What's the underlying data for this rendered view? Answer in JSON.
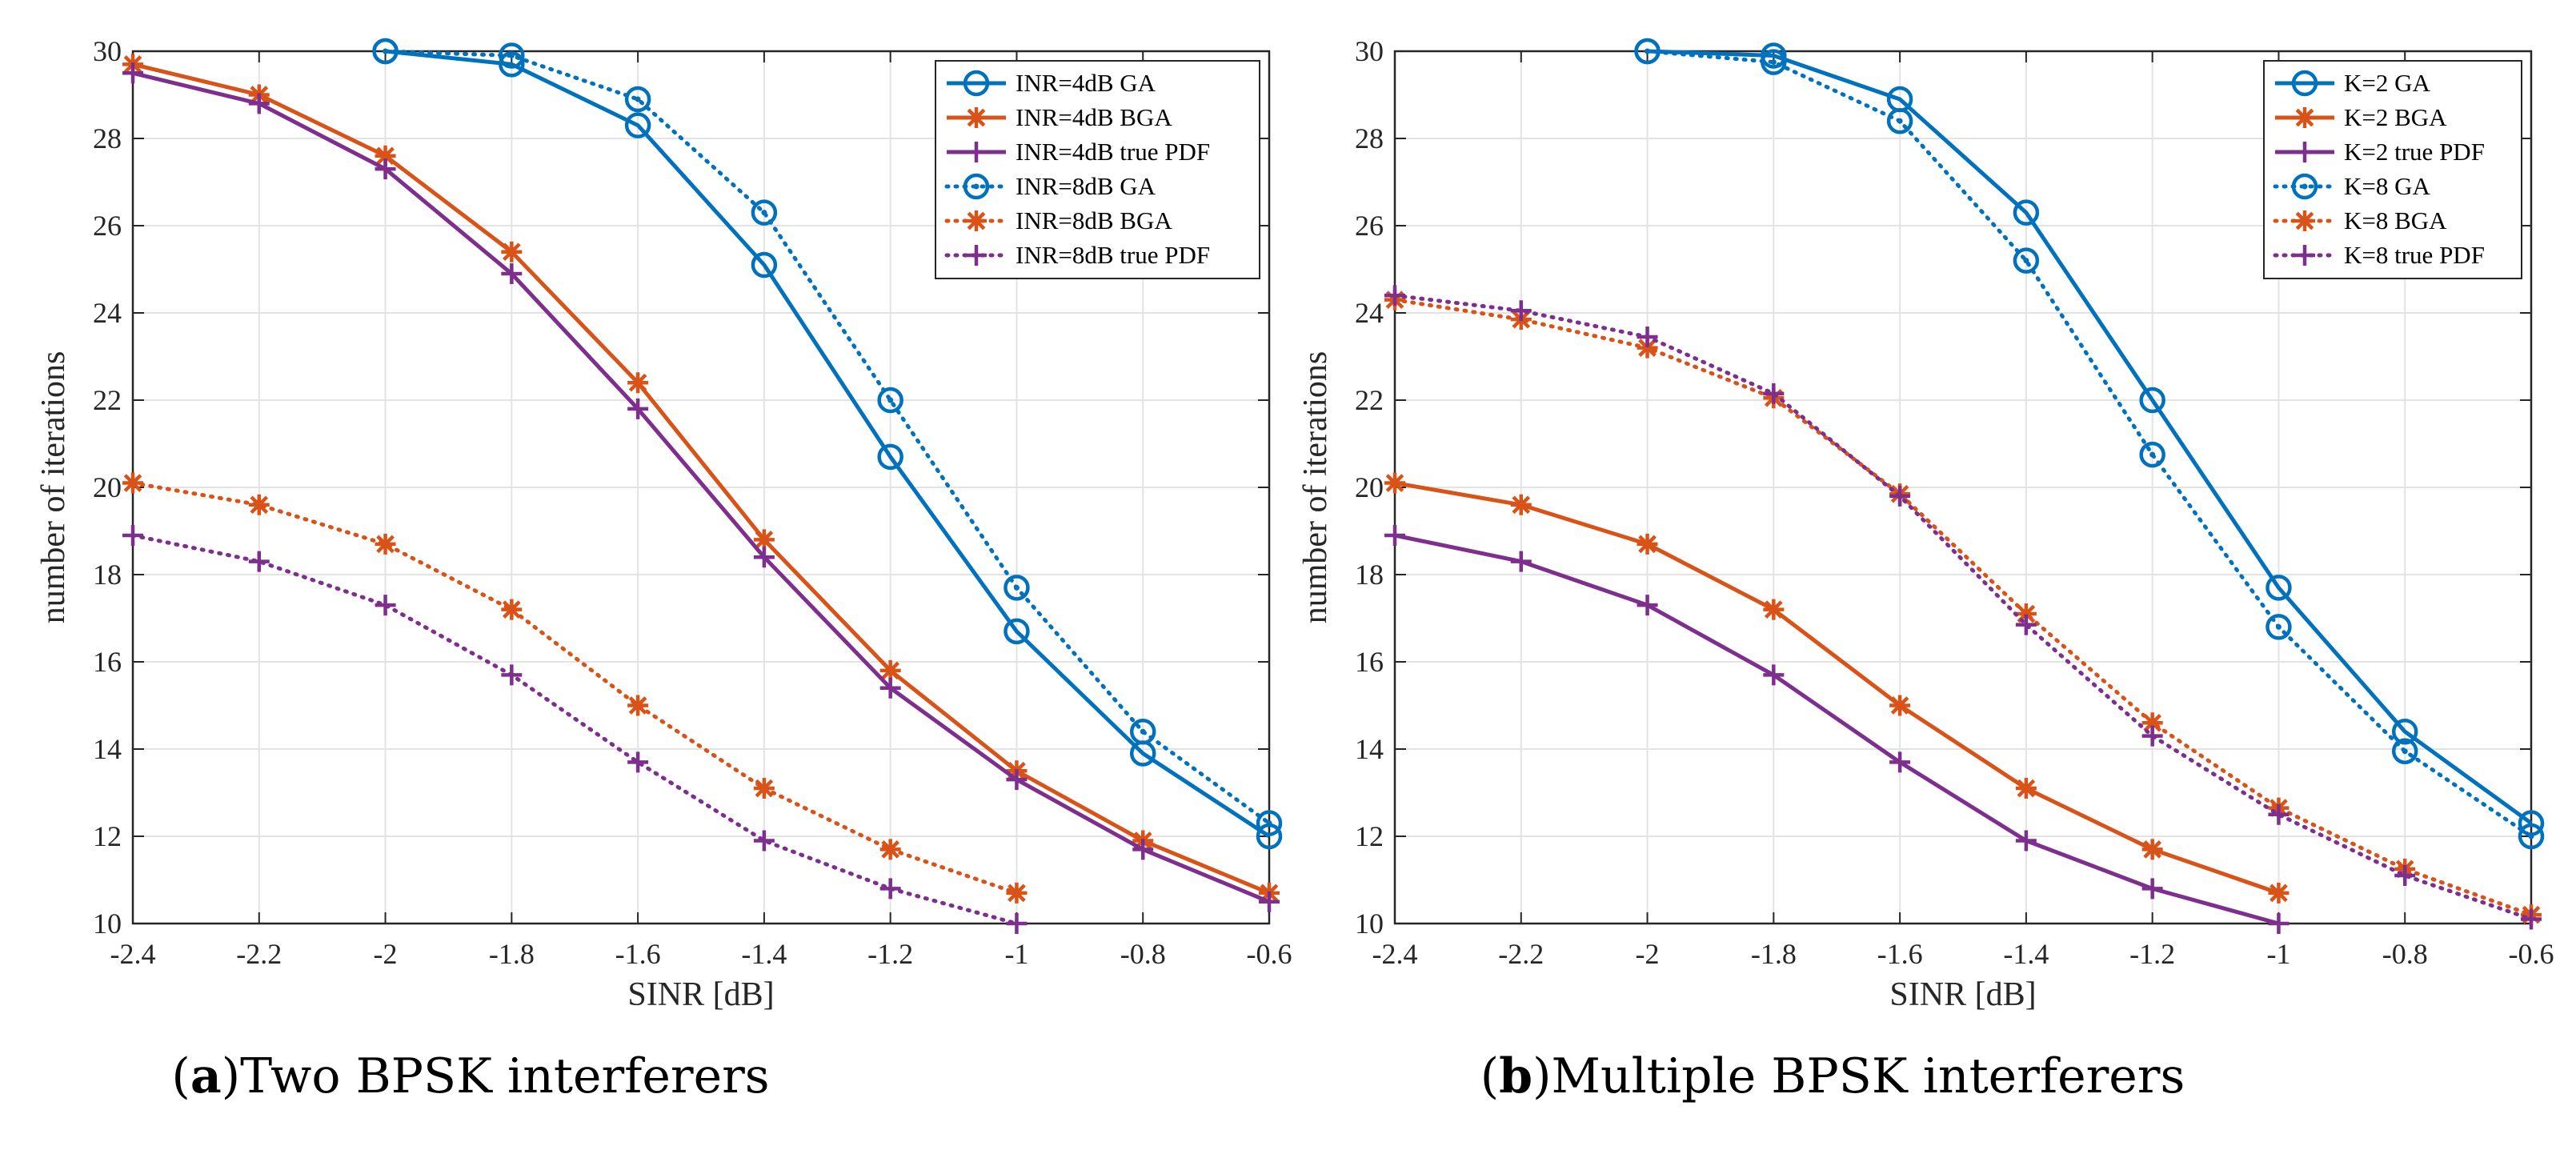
{
  "colors": {
    "blue": "#0072BD",
    "orange": "#D95319",
    "purple": "#7E2F8E",
    "grid": "#e3e3e3",
    "axis": "#262626"
  },
  "chart_data": [
    {
      "type": "line",
      "caption_label": "a",
      "caption_text": "Two BPSK interferers",
      "xlabel": "SINR [dB]",
      "ylabel": "number of iterations",
      "xlim": [
        -2.4,
        -0.6
      ],
      "ylim": [
        10,
        30
      ],
      "grid": true,
      "legend_position": "top-right",
      "x_ticks": [
        -2.4,
        -2.2,
        -2,
        -1.8,
        -1.6,
        -1.4,
        -1.2,
        -1,
        -0.8,
        -0.6
      ],
      "x_tick_labels": [
        "-2.4",
        "-2.2",
        "-2",
        "-1.8",
        "-1.6",
        "-1.4",
        "-1.2",
        "-1",
        "-0.8",
        "-0.6"
      ],
      "y_ticks": [
        10,
        12,
        14,
        16,
        18,
        20,
        22,
        24,
        26,
        28,
        30
      ],
      "y_tick_labels": [
        "10",
        "12",
        "14",
        "16",
        "18",
        "20",
        "22",
        "24",
        "26",
        "28",
        "30"
      ],
      "series": [
        {
          "name": "INR=4dB GA",
          "color": "#0072BD",
          "dash": "solid",
          "marker": "circle",
          "x": [
            -2,
            -1.8,
            -1.6,
            -1.4,
            -1.2,
            -1,
            -0.8,
            -0.6
          ],
          "y": [
            30,
            29.7,
            28.3,
            25.1,
            20.7,
            16.7,
            13.9,
            12.0
          ]
        },
        {
          "name": "INR=4dB BGA",
          "color": "#D95319",
          "dash": "solid",
          "marker": "asterisk",
          "x": [
            -2.4,
            -2.2,
            -2,
            -1.8,
            -1.6,
            -1.4,
            -1.2,
            -1,
            -0.8,
            -0.6
          ],
          "y": [
            29.7,
            29.0,
            27.6,
            25.4,
            22.4,
            18.8,
            15.8,
            13.5,
            11.9,
            10.7
          ]
        },
        {
          "name": "INR=4dB true PDF",
          "color": "#7E2F8E",
          "dash": "solid",
          "marker": "plus",
          "x": [
            -2.4,
            -2.2,
            -2,
            -1.8,
            -1.6,
            -1.4,
            -1.2,
            -1,
            -0.8,
            -0.6
          ],
          "y": [
            29.5,
            28.8,
            27.3,
            24.9,
            21.8,
            18.4,
            15.4,
            13.3,
            11.7,
            10.5
          ]
        },
        {
          "name": "INR=8dB GA",
          "color": "#0072BD",
          "dash": "dotted",
          "marker": "circle-dot",
          "x": [
            -2,
            -1.8,
            -1.6,
            -1.4,
            -1.2,
            -1,
            -0.8,
            -0.6
          ],
          "y": [
            30,
            29.9,
            28.9,
            26.3,
            22.0,
            17.7,
            14.4,
            12.3
          ]
        },
        {
          "name": "INR=8dB BGA",
          "color": "#D95319",
          "dash": "dotted",
          "marker": "asterisk",
          "x": [
            -2.4,
            -2.2,
            -2,
            -1.8,
            -1.6,
            -1.4,
            -1.2,
            -1
          ],
          "y": [
            20.1,
            19.6,
            18.7,
            17.2,
            15.0,
            13.1,
            11.7,
            10.7
          ]
        },
        {
          "name": "INR=8dB true PDF",
          "color": "#7E2F8E",
          "dash": "dotted",
          "marker": "plus",
          "x": [
            -2.4,
            -2.2,
            -2,
            -1.8,
            -1.6,
            -1.4,
            -1.2,
            -1
          ],
          "y": [
            18.9,
            18.3,
            17.3,
            15.7,
            13.7,
            11.9,
            10.8,
            10.0
          ]
        }
      ]
    },
    {
      "type": "line",
      "caption_label": "b",
      "caption_text": "Multiple BPSK interferers",
      "xlabel": "SINR [dB]",
      "ylabel": "number of iterations",
      "xlim": [
        -2.4,
        -0.6
      ],
      "ylim": [
        10,
        30
      ],
      "grid": true,
      "legend_position": "top-right",
      "x_ticks": [
        -2.4,
        -2.2,
        -2,
        -1.8,
        -1.6,
        -1.4,
        -1.2,
        -1,
        -0.8,
        -0.6
      ],
      "x_tick_labels": [
        "-2.4",
        "-2.2",
        "-2",
        "-1.8",
        "-1.6",
        "-1.4",
        "-1.2",
        "-1",
        "-0.8",
        "-0.6"
      ],
      "y_ticks": [
        10,
        12,
        14,
        16,
        18,
        20,
        22,
        24,
        26,
        28,
        30
      ],
      "y_tick_labels": [
        "10",
        "12",
        "14",
        "16",
        "18",
        "20",
        "22",
        "24",
        "26",
        "28",
        "30"
      ],
      "series": [
        {
          "name": "K=2 GA",
          "color": "#0072BD",
          "dash": "solid",
          "marker": "circle",
          "x": [
            -2,
            -1.8,
            -1.6,
            -1.4,
            -1.2,
            -1,
            -0.8,
            -0.6
          ],
          "y": [
            30,
            29.9,
            28.9,
            26.3,
            22.0,
            17.7,
            14.4,
            12.3
          ]
        },
        {
          "name": "K=2 BGA",
          "color": "#D95319",
          "dash": "solid",
          "marker": "asterisk",
          "x": [
            -2.4,
            -2.2,
            -2,
            -1.8,
            -1.6,
            -1.4,
            -1.2,
            -1
          ],
          "y": [
            20.1,
            19.6,
            18.7,
            17.2,
            15.0,
            13.1,
            11.7,
            10.7
          ]
        },
        {
          "name": "K=2 true PDF",
          "color": "#7E2F8E",
          "dash": "solid",
          "marker": "plus",
          "x": [
            -2.4,
            -2.2,
            -2,
            -1.8,
            -1.6,
            -1.4,
            -1.2,
            -1
          ],
          "y": [
            18.9,
            18.3,
            17.3,
            15.7,
            13.7,
            11.9,
            10.8,
            10.0
          ]
        },
        {
          "name": "K=8 GA",
          "color": "#0072BD",
          "dash": "dotted",
          "marker": "circle-dot",
          "x": [
            -2,
            -1.8,
            -1.6,
            -1.4,
            -1.2,
            -1,
            -0.8,
            -0.6
          ],
          "y": [
            30,
            29.75,
            28.4,
            25.2,
            20.75,
            16.8,
            13.95,
            12.0
          ]
        },
        {
          "name": "K=8 BGA",
          "color": "#D95319",
          "dash": "dotted",
          "marker": "asterisk",
          "x": [
            -2.4,
            -2.2,
            -2,
            -1.8,
            -1.6,
            -1.4,
            -1.2,
            -1,
            -0.8,
            -0.6
          ],
          "y": [
            24.3,
            23.85,
            23.2,
            22.05,
            19.85,
            17.1,
            14.6,
            12.65,
            11.25,
            10.2
          ]
        },
        {
          "name": "K=8 true PDF",
          "color": "#7E2F8E",
          "dash": "dotted",
          "marker": "plus",
          "x": [
            -2.4,
            -2.2,
            -2,
            -1.8,
            -1.6,
            -1.4,
            -1.2,
            -1,
            -0.8,
            -0.6
          ],
          "y": [
            24.4,
            24.05,
            23.45,
            22.15,
            19.8,
            16.85,
            14.3,
            12.5,
            11.1,
            10.1
          ]
        }
      ]
    }
  ]
}
